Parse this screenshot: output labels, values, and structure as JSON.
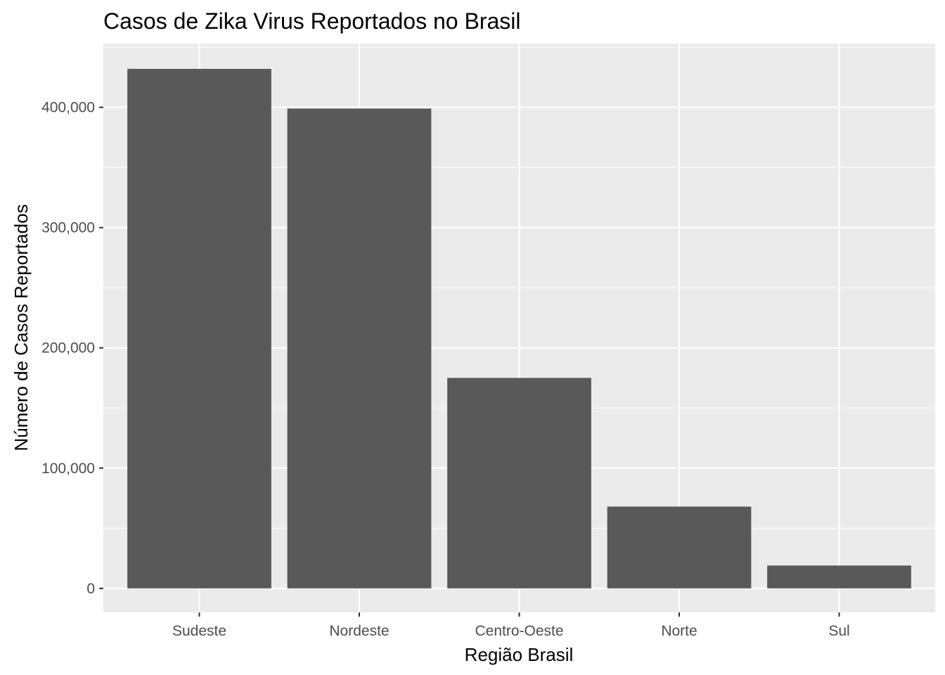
{
  "chart_data": {
    "type": "bar",
    "title": "Casos de Zika Virus Reportados no Brasil",
    "xlabel": "Região Brasil",
    "ylabel": "Número de Casos Reportados",
    "categories": [
      "Sudeste",
      "Nordeste",
      "Centro-Oeste",
      "Norte",
      "Sul"
    ],
    "values": [
      432000,
      399000,
      175000,
      68000,
      19000
    ],
    "ylim": [
      -20000,
      453000
    ],
    "yticks": [
      0,
      100000,
      200000,
      300000,
      400000
    ],
    "ytick_labels": [
      "0",
      "100,000",
      "200,000",
      "300,000",
      "400,000"
    ],
    "grid": true,
    "bar_color": "#595959",
    "panel_color": "#ebebeb",
    "grid_color": "#ffffff"
  }
}
